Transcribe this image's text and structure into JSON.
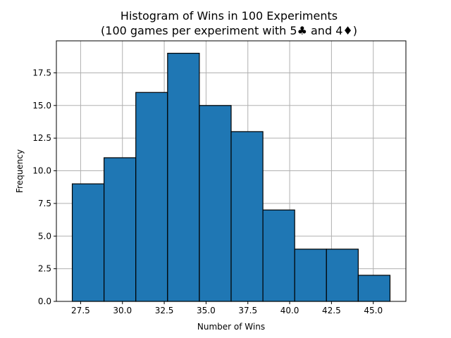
{
  "chart_data": {
    "type": "bar",
    "title_lines": [
      "Histogram of Wins in 100 Experiments",
      "(100 games per experiment with 5♣ and 4♦)"
    ],
    "xlabel": "Number of Wins",
    "ylabel": "Frequency",
    "bin_edges": [
      27.0,
      28.9,
      30.8,
      32.7,
      34.6,
      36.5,
      38.4,
      40.3,
      42.2,
      44.1,
      46.0
    ],
    "values": [
      9,
      11,
      16,
      19,
      15,
      13,
      7,
      4,
      4,
      2
    ],
    "xlim": [
      26.05,
      46.95
    ],
    "ylim": [
      0,
      19.95
    ],
    "xticks": [
      27.5,
      30.0,
      32.5,
      35.0,
      37.5,
      40.0,
      42.5,
      45.0
    ],
    "xtick_labels": [
      "27.5",
      "30.0",
      "32.5",
      "35.0",
      "37.5",
      "40.0",
      "42.5",
      "45.0"
    ],
    "yticks": [
      0.0,
      2.5,
      5.0,
      7.5,
      10.0,
      12.5,
      15.0,
      17.5
    ],
    "ytick_labels": [
      "0.0",
      "2.5",
      "5.0",
      "7.5",
      "10.0",
      "12.5",
      "15.0",
      "17.5"
    ],
    "grid": true,
    "bar_color": "#1f77b4",
    "edge_color": "#000000",
    "grid_color": "#b0b0b0"
  }
}
